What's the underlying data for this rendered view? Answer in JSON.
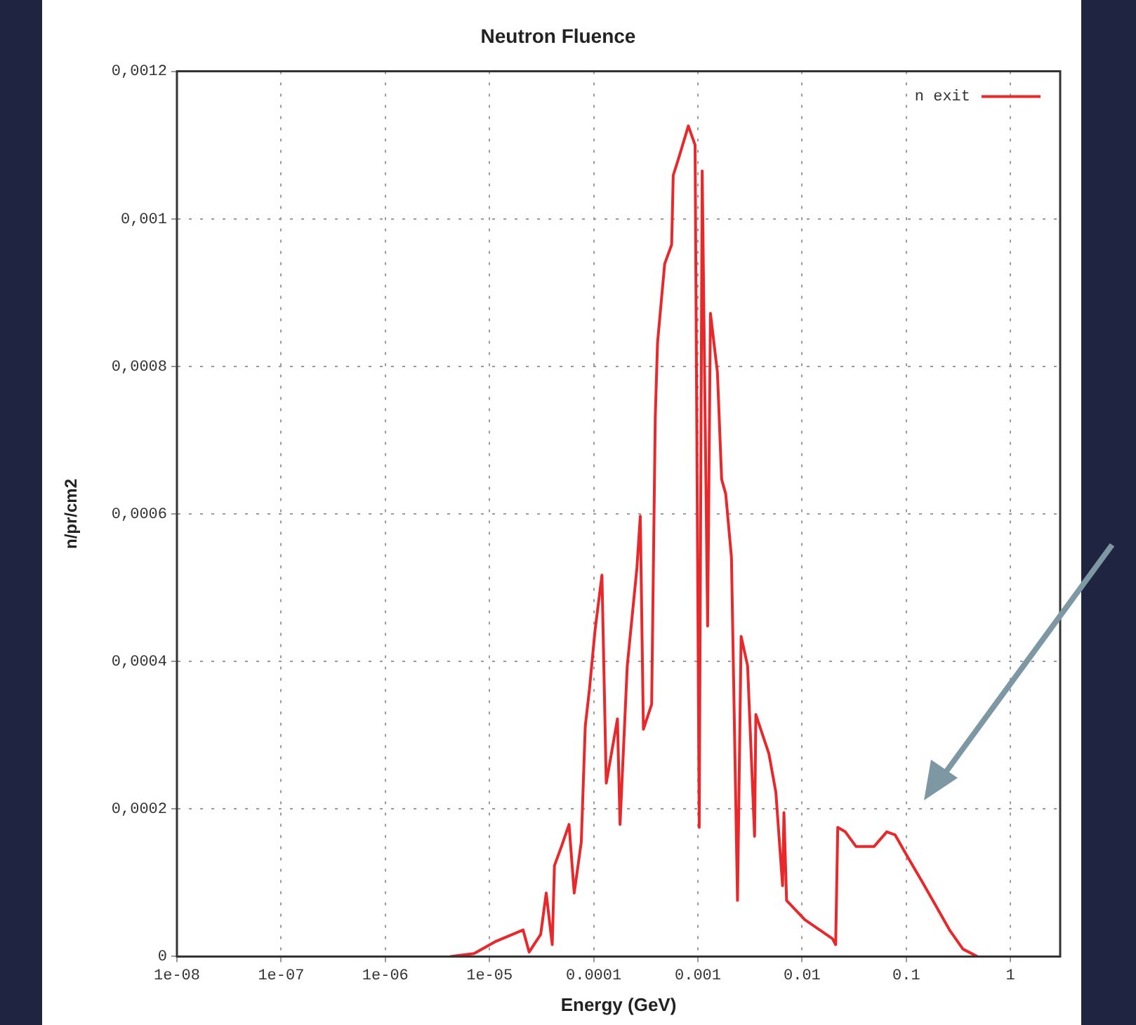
{
  "chart_data": {
    "type": "line",
    "title": "Neutron Fluence",
    "xlabel": "Energy (GeV)",
    "ylabel": "n/pr/cm2",
    "log": "x",
    "xlim": [
      1e-08,
      3
    ],
    "ylim": [
      0,
      0.0012
    ],
    "xticks": [
      {
        "value": 1e-08,
        "label": "1e-08"
      },
      {
        "value": 1e-07,
        "label": "1e-07"
      },
      {
        "value": 1e-06,
        "label": "1e-06"
      },
      {
        "value": 1e-05,
        "label": "1e-05"
      },
      {
        "value": 0.0001,
        "label": "0.0001"
      },
      {
        "value": 0.001,
        "label": "0.001"
      },
      {
        "value": 0.01,
        "label": "0.01"
      },
      {
        "value": 0.1,
        "label": "0.1"
      },
      {
        "value": 1,
        "label": "1"
      }
    ],
    "yticks": [
      {
        "value": 0,
        "label": "0"
      },
      {
        "value": 0.0002,
        "label": "0,0002"
      },
      {
        "value": 0.0004,
        "label": "0,0004"
      },
      {
        "value": 0.0006,
        "label": "0,0006"
      },
      {
        "value": 0.0008,
        "label": "0,0008"
      },
      {
        "value": 0.001,
        "label": "0,001"
      },
      {
        "value": 0.0012,
        "label": "0,0012"
      }
    ],
    "grid": true,
    "legend": "top right",
    "marker": "none",
    "line_style": "solid",
    "series": [
      {
        "name": "n exit",
        "color": "#e8282b",
        "x": [
          4.2e-06,
          7.1e-06,
          1.13e-05,
          2.1e-05,
          2.4e-05,
          3.1e-05,
          3.5e-05,
          4e-05,
          4.2e-05,
          4.9e-05,
          5.8e-05,
          6.5e-05,
          7.6e-05,
          8.3e-05,
          9.1e-05,
          0.000103,
          0.00012,
          0.000132,
          0.000169,
          0.000179,
          0.00021,
          0.00026,
          0.00028,
          0.0003,
          0.00036,
          0.00039,
          0.00041,
          0.00048,
          0.00056,
          0.00058,
          0.00065,
          0.00081,
          0.00094,
          0.00103,
          0.0011,
          0.00124,
          0.00132,
          0.00154,
          0.00169,
          0.00185,
          0.0021,
          0.0024,
          0.0026,
          0.003,
          0.0035,
          0.0036,
          0.0048,
          0.0056,
          0.0065,
          0.0067,
          0.0071,
          0.0106,
          0.0196,
          0.021,
          0.022,
          0.026,
          0.033,
          0.049,
          0.065,
          0.078,
          0.103,
          0.14,
          0.19,
          0.26,
          0.35,
          0.48
        ],
        "values": [
          0,
          4e-06,
          2e-05,
          3.6e-05,
          6e-06,
          3e-05,
          8.6e-05,
          1.6e-05,
          0.000123,
          0.000149,
          0.000179,
          8.6e-05,
          0.000155,
          0.000312,
          0.000362,
          0.000442,
          0.000517,
          0.000235,
          0.000322,
          0.000179,
          0.000394,
          0.000527,
          0.000597,
          0.000308,
          0.000342,
          0.000732,
          0.000832,
          0.000939,
          0.000965,
          0.001059,
          0.001081,
          0.001126,
          0.0011,
          0.000175,
          0.001065,
          0.000448,
          0.000872,
          0.000792,
          0.000647,
          0.000627,
          0.000541,
          7.6e-05,
          0.000434,
          0.000394,
          0.000163,
          0.000328,
          0.000275,
          0.000223,
          9.6e-05,
          0.000195,
          7.6e-05,
          5e-05,
          2.4e-05,
          1.6e-05,
          0.000175,
          0.000169,
          0.000149,
          0.000149,
          0.000169,
          0.000165,
          0.000135,
          0.000103,
          7e-05,
          3.6e-05,
          1e-05,
          0
        ]
      }
    ]
  }
}
